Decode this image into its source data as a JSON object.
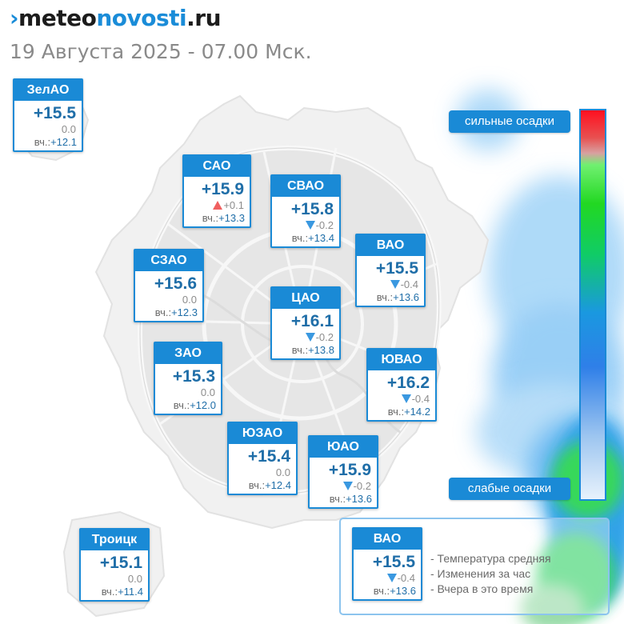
{
  "site": {
    "logo_mark": "›",
    "logo_part1": "meteo",
    "logo_part2": "novosti",
    "logo_part3": ".ru"
  },
  "subtitle": "19 Августа 2025 - 07.00 Мск.",
  "districts": [
    {
      "id": "zelao",
      "name": "ЗелАО",
      "temp": "+15.5",
      "change": "0.0",
      "trend": "none",
      "yesterday_label": "вч.:",
      "yesterday": "+12.1"
    },
    {
      "id": "sao",
      "name": "САО",
      "temp": "+15.9",
      "change": "+0.1",
      "trend": "up",
      "yesterday_label": "вч.:",
      "yesterday": "+13.3"
    },
    {
      "id": "svao",
      "name": "СВАО",
      "temp": "+15.8",
      "change": "-0.2",
      "trend": "down",
      "yesterday_label": "вч.:",
      "yesterday": "+13.4"
    },
    {
      "id": "szao",
      "name": "СЗАО",
      "temp": "+15.6",
      "change": "0.0",
      "trend": "none",
      "yesterday_label": "вч.:",
      "yesterday": "+12.3"
    },
    {
      "id": "vao",
      "name": "ВАО",
      "temp": "+15.5",
      "change": "-0.4",
      "trend": "down",
      "yesterday_label": "вч.:",
      "yesterday": "+13.6"
    },
    {
      "id": "cao",
      "name": "ЦАО",
      "temp": "+16.1",
      "change": "-0.2",
      "trend": "down",
      "yesterday_label": "вч.:",
      "yesterday": "+13.8"
    },
    {
      "id": "zao",
      "name": "ЗАО",
      "temp": "+15.3",
      "change": "0.0",
      "trend": "none",
      "yesterday_label": "вч.:",
      "yesterday": "+12.0"
    },
    {
      "id": "yuvao",
      "name": "ЮВАО",
      "temp": "+16.2",
      "change": "-0.4",
      "trend": "down",
      "yesterday_label": "вч.:",
      "yesterday": "+14.2"
    },
    {
      "id": "yuzao",
      "name": "ЮЗАО",
      "temp": "+15.4",
      "change": "0.0",
      "trend": "none",
      "yesterday_label": "вч.:",
      "yesterday": "+12.4"
    },
    {
      "id": "yuao",
      "name": "ЮАО",
      "temp": "+15.9",
      "change": "-0.2",
      "trend": "down",
      "yesterday_label": "вч.:",
      "yesterday": "+13.6"
    },
    {
      "id": "troitsk",
      "name": "Троицк",
      "temp": "+15.1",
      "change": "0.0",
      "trend": "none",
      "yesterday_label": "вч.:",
      "yesterday": "+11.4"
    }
  ],
  "precip_scale": {
    "top_label": "сильные осадки",
    "bottom_label": "слабые осадки",
    "top_color": "#ff1020",
    "mid_color": "#22d822",
    "bottom_color": "#2f7fe8"
  },
  "legend": {
    "sample": {
      "name": "ВАО",
      "temp": "+15.5",
      "change": "-0.4",
      "trend": "down",
      "yesterday_label": "вч.:",
      "yesterday": "+13.6"
    },
    "items": [
      "- Температура средняя",
      "- Изменения за час",
      "- Вчера в это время"
    ]
  },
  "colors": {
    "accent": "#1a8ad6",
    "temp_text": "#1f6ea8",
    "trend_up": "#f06060",
    "trend_down": "#3a98e0"
  }
}
